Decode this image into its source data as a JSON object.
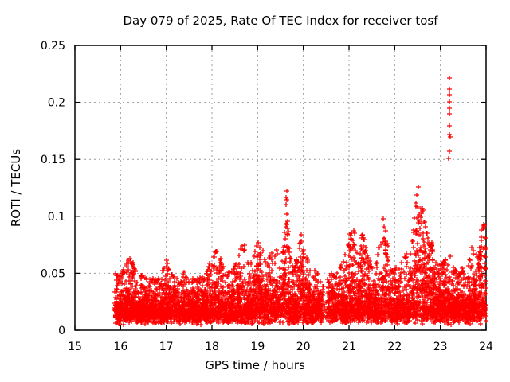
{
  "page": {
    "background": "#ffffff"
  },
  "chart_data": {
    "type": "scatter",
    "title": "Day 079 of 2025, Rate Of TEC Index for receiver tosf",
    "xlabel": "GPS time / hours",
    "ylabel": "ROTI / TECUs",
    "xlim": [
      15,
      24
    ],
    "ylim": [
      0,
      0.25
    ],
    "xticks": [
      15,
      16,
      17,
      18,
      19,
      20,
      21,
      22,
      23,
      24
    ],
    "xtick_labels": [
      "15",
      "16",
      "17",
      "18",
      "19",
      "20",
      "21",
      "22",
      "23",
      "24"
    ],
    "yticks": [
      0,
      0.05,
      0.1,
      0.15,
      0.2,
      0.25
    ],
    "ytick_labels": [
      "0",
      "0.05",
      "0.1",
      "0.15",
      "0.2",
      "0.25"
    ],
    "grid": true,
    "grid_color": "#999999",
    "legend": "none",
    "marker": "+",
    "marker_color": "#ff0000",
    "series": [
      {
        "name": "ROTI",
        "coverage": {
          "start_hour": 15.87,
          "end_hour": 24.0,
          "gap": [
            20.42,
            20.53
          ]
        },
        "band_bottom": 0.005,
        "points_per_hour": 760,
        "envelope": [
          [
            15.87,
            0.05
          ],
          [
            16.0,
            0.048
          ],
          [
            16.1,
            0.056
          ],
          [
            16.2,
            0.066
          ],
          [
            16.3,
            0.056
          ],
          [
            16.4,
            0.047
          ],
          [
            16.5,
            0.05
          ],
          [
            16.6,
            0.044
          ],
          [
            16.7,
            0.046
          ],
          [
            16.8,
            0.044
          ],
          [
            16.9,
            0.05
          ],
          [
            17.0,
            0.062
          ],
          [
            17.1,
            0.052
          ],
          [
            17.2,
            0.046
          ],
          [
            17.3,
            0.044
          ],
          [
            17.4,
            0.052
          ],
          [
            17.5,
            0.042
          ],
          [
            17.6,
            0.048
          ],
          [
            17.7,
            0.046
          ],
          [
            17.8,
            0.048
          ],
          [
            17.9,
            0.054
          ],
          [
            18.0,
            0.066
          ],
          [
            18.1,
            0.07
          ],
          [
            18.2,
            0.062
          ],
          [
            18.3,
            0.05
          ],
          [
            18.4,
            0.052
          ],
          [
            18.5,
            0.056
          ],
          [
            18.6,
            0.072
          ],
          [
            18.7,
            0.078
          ],
          [
            18.8,
            0.058
          ],
          [
            18.9,
            0.062
          ],
          [
            19.0,
            0.08
          ],
          [
            19.1,
            0.075
          ],
          [
            19.2,
            0.058
          ],
          [
            19.3,
            0.07
          ],
          [
            19.4,
            0.072
          ],
          [
            19.5,
            0.055
          ],
          [
            19.6,
            0.09
          ],
          [
            19.65,
            0.125
          ],
          [
            19.7,
            0.068
          ],
          [
            19.8,
            0.055
          ],
          [
            19.9,
            0.072
          ],
          [
            19.95,
            0.085
          ],
          [
            20.0,
            0.08
          ],
          [
            20.1,
            0.06
          ],
          [
            20.2,
            0.055
          ],
          [
            20.3,
            0.05
          ],
          [
            20.4,
            0.052
          ],
          [
            20.45,
            0.062
          ],
          [
            20.55,
            0.045
          ],
          [
            20.6,
            0.052
          ],
          [
            20.7,
            0.048
          ],
          [
            20.8,
            0.055
          ],
          [
            20.9,
            0.065
          ],
          [
            21.0,
            0.085
          ],
          [
            21.1,
            0.09
          ],
          [
            21.2,
            0.06
          ],
          [
            21.3,
            0.088
          ],
          [
            21.4,
            0.068
          ],
          [
            21.5,
            0.055
          ],
          [
            21.6,
            0.06
          ],
          [
            21.7,
            0.09
          ],
          [
            21.75,
            0.1
          ],
          [
            21.85,
            0.075
          ],
          [
            21.9,
            0.055
          ],
          [
            22.0,
            0.056
          ],
          [
            22.1,
            0.06
          ],
          [
            22.2,
            0.065
          ],
          [
            22.3,
            0.07
          ],
          [
            22.4,
            0.09
          ],
          [
            22.5,
            0.128
          ],
          [
            22.55,
            0.125
          ],
          [
            22.6,
            0.11
          ],
          [
            22.7,
            0.1
          ],
          [
            22.8,
            0.08
          ],
          [
            22.9,
            0.06
          ],
          [
            23.0,
            0.058
          ],
          [
            23.1,
            0.062
          ],
          [
            23.2,
            0.068
          ],
          [
            23.3,
            0.056
          ],
          [
            23.4,
            0.052
          ],
          [
            23.5,
            0.056
          ],
          [
            23.6,
            0.06
          ],
          [
            23.7,
            0.075
          ],
          [
            23.8,
            0.065
          ],
          [
            23.9,
            0.09
          ],
          [
            23.95,
            0.095
          ],
          [
            24.0,
            0.09
          ]
        ],
        "outliers": [
          [
            19.615,
            0.11
          ],
          [
            19.63,
            0.1165
          ],
          [
            19.64,
            0.122
          ],
          [
            19.625,
            0.0905
          ],
          [
            19.65,
            0.0835
          ],
          [
            23.175,
            0.1505
          ],
          [
            23.19,
            0.157
          ],
          [
            23.2,
            0.1715
          ],
          [
            23.21,
            0.1695
          ],
          [
            23.19,
            0.1795
          ],
          [
            23.2,
            0.19
          ],
          [
            23.205,
            0.195
          ],
          [
            23.2,
            0.2005
          ],
          [
            23.19,
            0.2065
          ],
          [
            23.205,
            0.2115
          ],
          [
            23.2,
            0.2215
          ]
        ]
      }
    ]
  }
}
